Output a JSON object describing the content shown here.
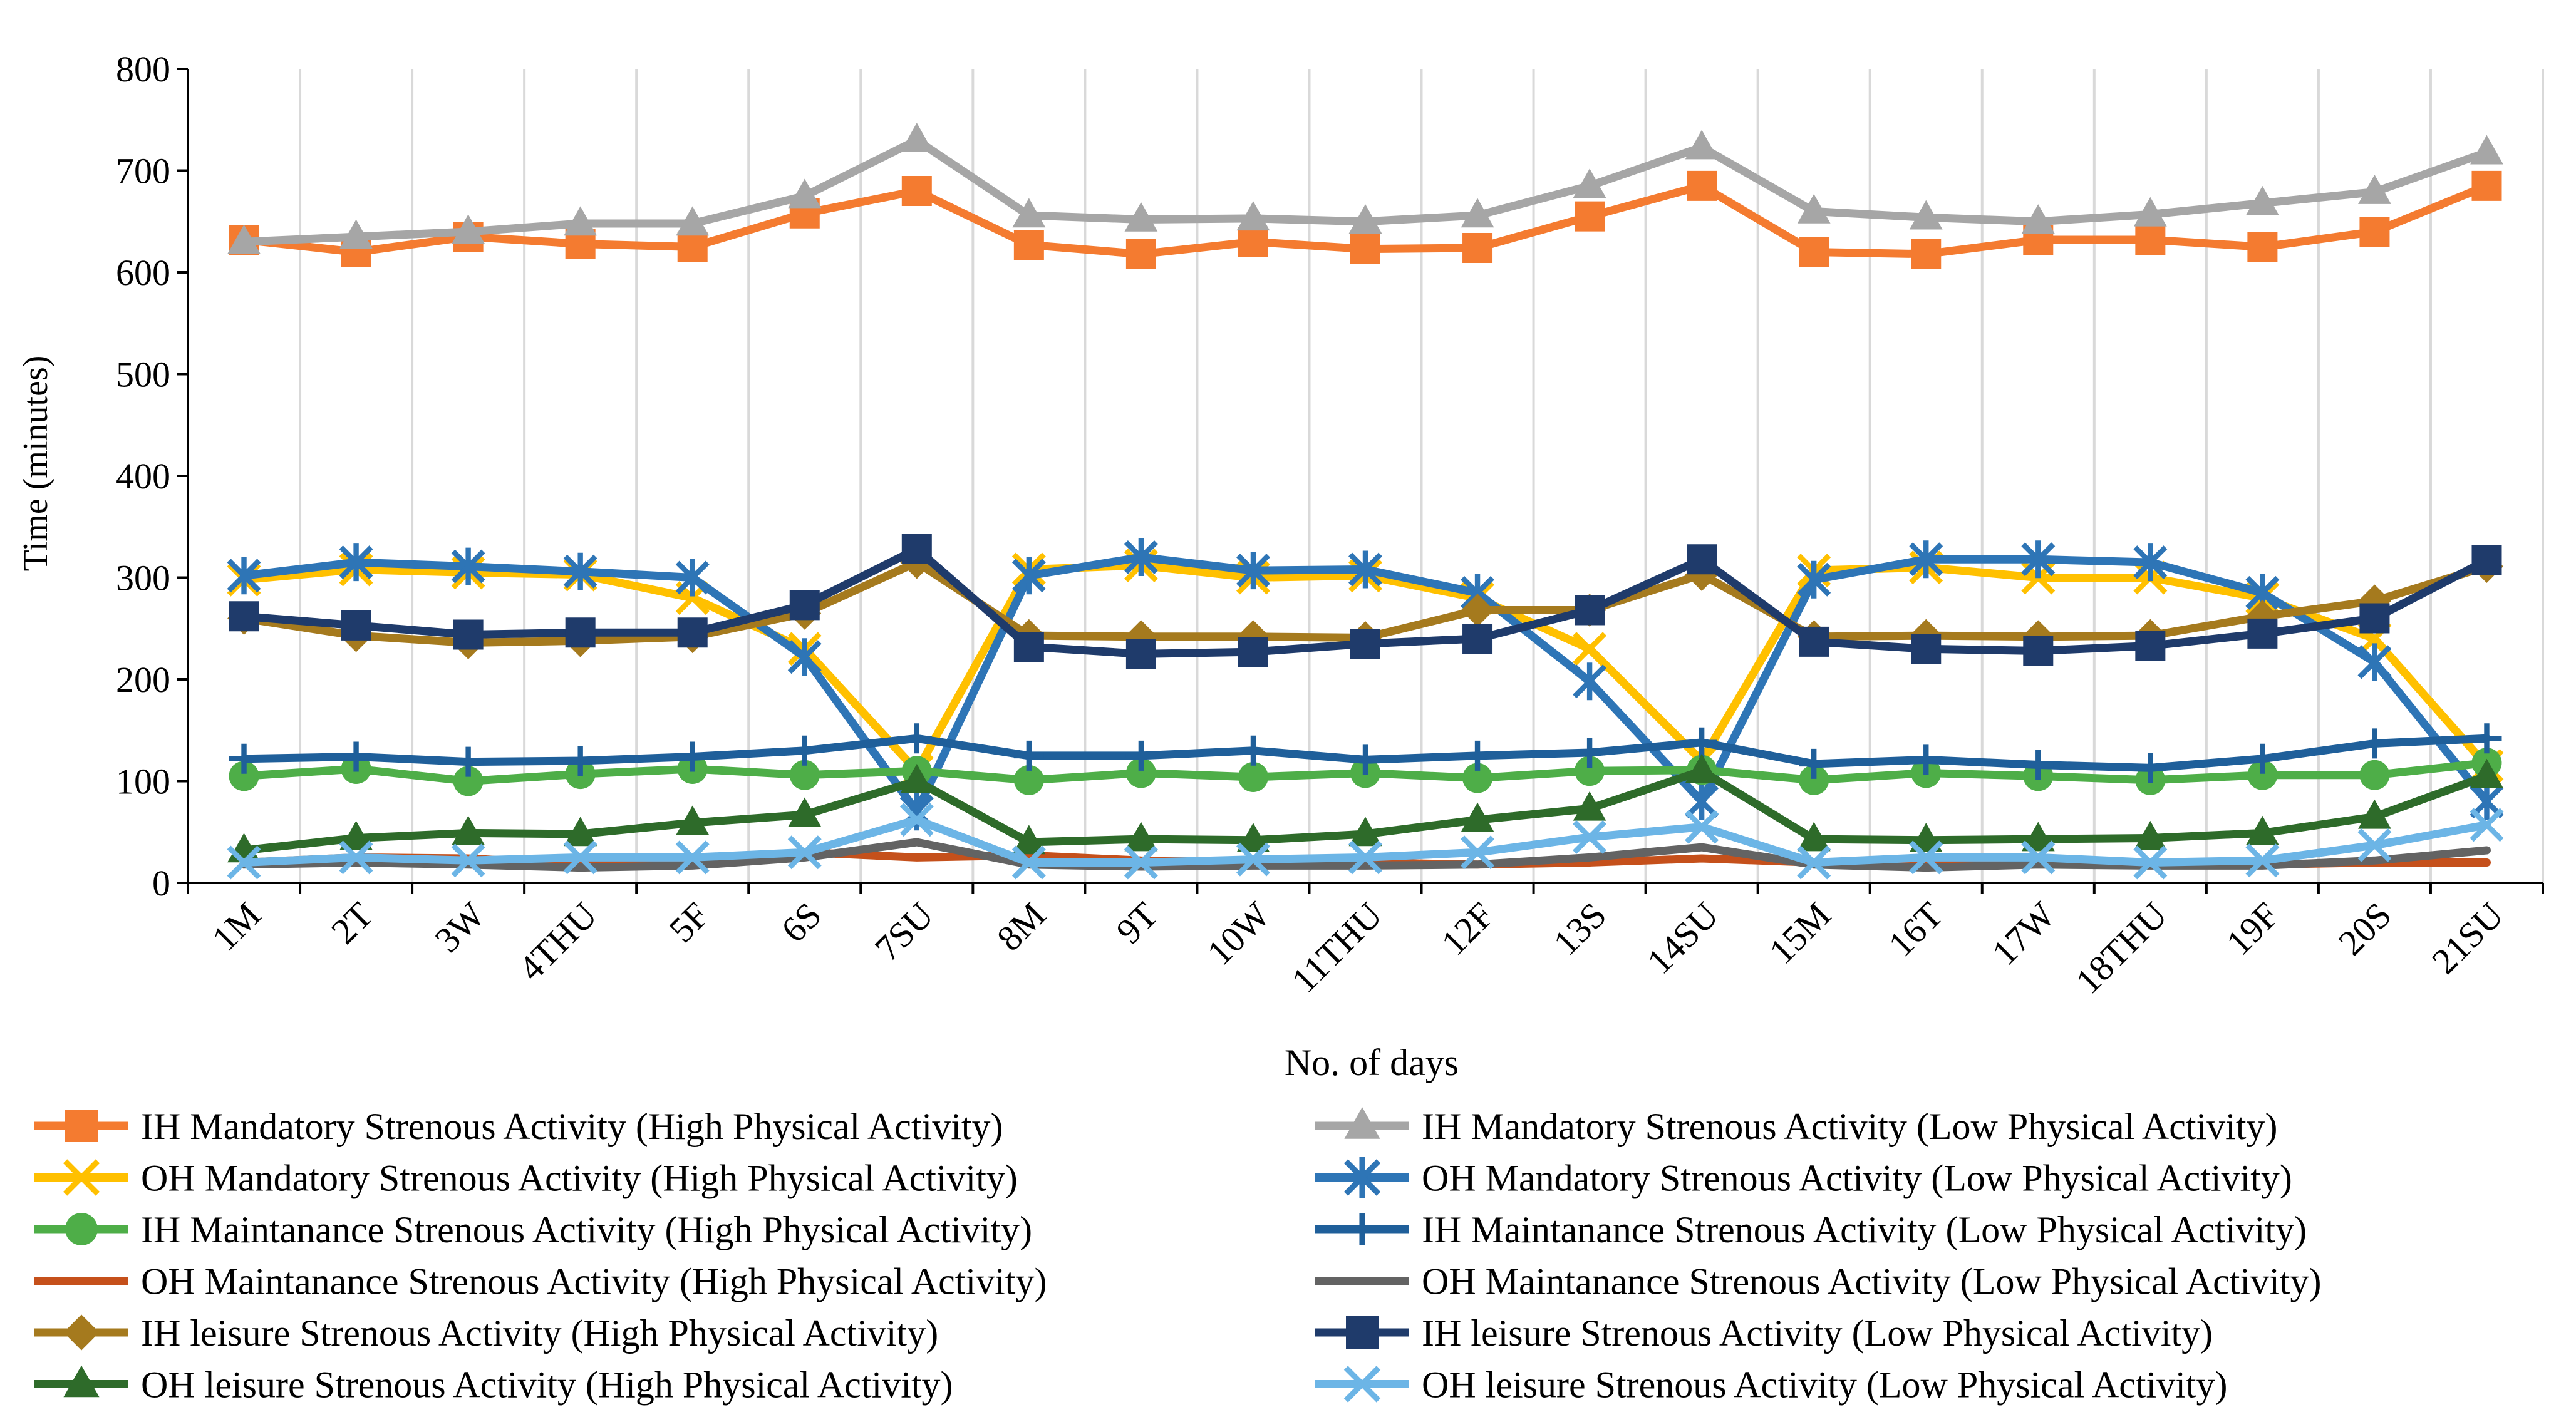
{
  "chart_data": {
    "type": "line",
    "xlabel": "No. of days",
    "ylabel": "Time (minutes)",
    "ylim": [
      0,
      800
    ],
    "yticks": [
      0,
      100,
      200,
      300,
      400,
      500,
      600,
      700,
      800
    ],
    "grid": "vertical",
    "legend_position": "bottom",
    "categories": [
      "1M",
      "2T",
      "3W",
      "4THU",
      "5F",
      "6S",
      "7SU",
      "8M",
      "9T",
      "10W",
      "11THU",
      "12F",
      "13S",
      "14SU",
      "15M",
      "16T",
      "17W",
      "18THU",
      "19F",
      "20S",
      "21SU"
    ],
    "series": [
      {
        "name": "IH Mandatory Strenous Activity (High Physical Activity)",
        "color": "#F47B30",
        "marker": "square",
        "values": [
          632,
          620,
          635,
          628,
          625,
          658,
          680,
          627,
          618,
          630,
          623,
          624,
          655,
          685,
          620,
          618,
          632,
          632,
          625,
          640,
          685
        ]
      },
      {
        "name": "IH Mandatory Strenous Activity (Low Physical Activity)",
        "color": "#A6A6A6",
        "marker": "triangle",
        "values": [
          630,
          635,
          640,
          648,
          648,
          675,
          730,
          656,
          652,
          653,
          650,
          656,
          685,
          723,
          660,
          654,
          650,
          657,
          668,
          679,
          718
        ]
      },
      {
        "name": "OH Mandatory Strenous Activity (High Physical Activity)",
        "color": "#FFC000",
        "marker": "x",
        "values": [
          298,
          308,
          305,
          303,
          280,
          230,
          110,
          308,
          312,
          300,
          302,
          280,
          230,
          120,
          307,
          310,
          300,
          300,
          280,
          240,
          115
        ]
      },
      {
        "name": "OH Mandatory Strenous Activity (Low Physical Activity)",
        "color": "#2E75B6",
        "marker": "asterisk",
        "values": [
          302,
          315,
          311,
          306,
          300,
          222,
          70,
          302,
          320,
          307,
          308,
          285,
          198,
          80,
          298,
          318,
          318,
          315,
          285,
          217,
          80
        ]
      },
      {
        "name": "IH Maintanance Strenous Activity (High Physical Activity)",
        "color": "#4EAE48",
        "marker": "circle",
        "values": [
          105,
          112,
          100,
          107,
          112,
          106,
          110,
          101,
          108,
          104,
          108,
          103,
          110,
          111,
          101,
          108,
          105,
          101,
          106,
          106,
          118
        ]
      },
      {
        "name": "IH Maintanance Strenous Activity (Low Physical Activity)",
        "color": "#1F5F9A",
        "marker": "plus",
        "values": [
          122,
          124,
          119,
          120,
          124,
          130,
          142,
          125,
          125,
          130,
          121,
          125,
          128,
          138,
          117,
          121,
          116,
          113,
          122,
          137,
          142
        ]
      },
      {
        "name": "OH Maintanance Strenous Activity (High Physical Activity)",
        "color": "#C5501B",
        "marker": "none",
        "values": [
          20,
          25,
          24,
          18,
          20,
          30,
          25,
          27,
          22,
          20,
          20,
          18,
          20,
          24,
          20,
          18,
          20,
          20,
          18,
          20,
          20
        ]
      },
      {
        "name": "OH Maintanance Strenous Activity (Low Physical Activity)",
        "color": "#636363",
        "marker": "none",
        "values": [
          18,
          20,
          18,
          15,
          17,
          25,
          40,
          18,
          16,
          17,
          17,
          18,
          25,
          35,
          18,
          15,
          18,
          17,
          17,
          22,
          32
        ]
      },
      {
        "name": "IH leisure Strenous Activity (High Physical Activity)",
        "color": "#A57A1E",
        "marker": "diamond",
        "values": [
          260,
          243,
          236,
          238,
          242,
          265,
          315,
          243,
          242,
          242,
          241,
          268,
          268,
          303,
          242,
          243,
          242,
          243,
          262,
          277,
          311
        ]
      },
      {
        "name": "IH leisure Strenous Activity (Low Physical Activity)",
        "color": "#1F3B6B",
        "marker": "square",
        "values": [
          262,
          253,
          244,
          246,
          246,
          273,
          328,
          232,
          225,
          227,
          235,
          240,
          268,
          318,
          237,
          230,
          228,
          233,
          245,
          260,
          317
        ]
      },
      {
        "name": "OH leisure Strenous Activity (High Physical Activity)",
        "color": "#2E6B2A",
        "marker": "triangle",
        "values": [
          32,
          44,
          49,
          48,
          59,
          67,
          100,
          40,
          43,
          42,
          48,
          62,
          73,
          110,
          43,
          42,
          43,
          44,
          49,
          65,
          105
        ]
      },
      {
        "name": "OH leisure Strenous Activity (Low Physical Activity)",
        "color": "#6CB5E6",
        "marker": "x",
        "values": [
          20,
          25,
          22,
          25,
          25,
          30,
          62,
          20,
          20,
          23,
          25,
          30,
          45,
          55,
          20,
          25,
          25,
          20,
          22,
          37,
          57
        ]
      }
    ]
  }
}
